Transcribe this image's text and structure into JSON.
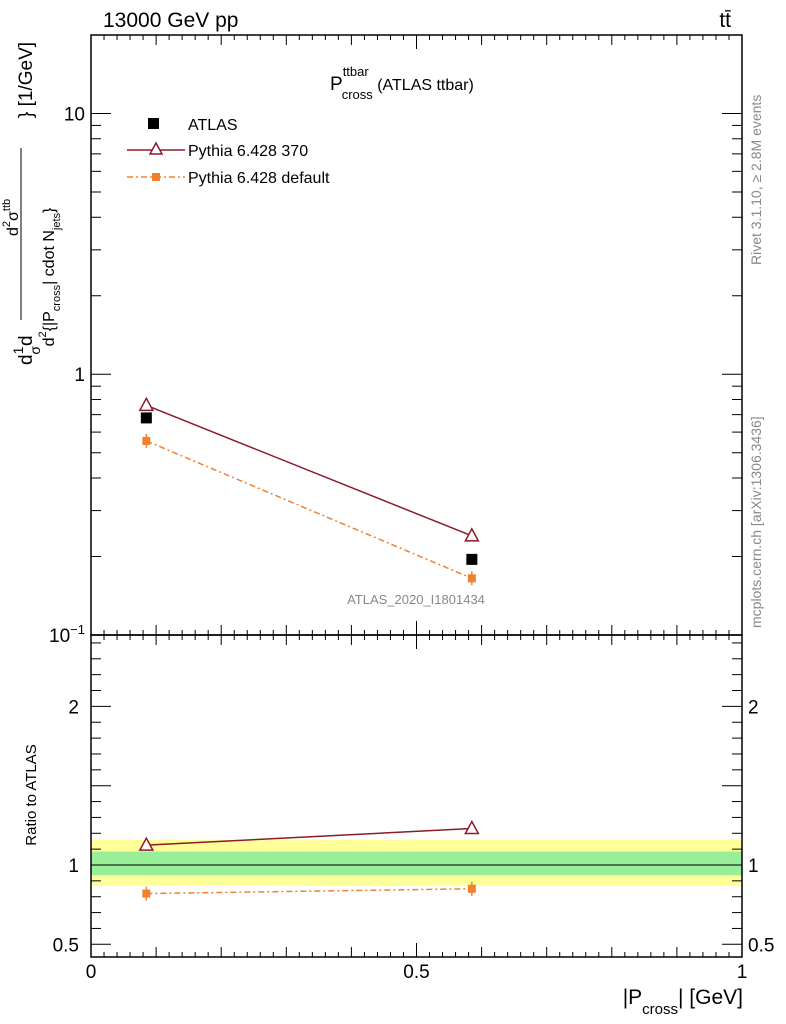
{
  "header": {
    "left": "13000 GeV pp",
    "right": "tt̄"
  },
  "side_labels": {
    "rivet": "Rivet 3.1.10, ≥ 2.8M events",
    "mcplots": "mcplots.cern.ch [arXiv:1306.3436]"
  },
  "chart_data": [
    {
      "type": "line",
      "panel": "main",
      "title_main": "P",
      "title_sup": "ttbar",
      "title_sub": "cross",
      "title_rest": " (ATLAS ttbar)",
      "watermark": "ATLAS_2020_I1801434",
      "yscale": "log",
      "xlim": [
        0,
        1
      ],
      "ylim": [
        0.1,
        20
      ],
      "yticks": [
        {
          "value": 0.1,
          "base": "10",
          "exp": "−1"
        },
        {
          "value": 1,
          "label": "1"
        },
        {
          "value": 10,
          "label": "10"
        }
      ],
      "ylabel": {
        "part1": "d",
        "frac1_num": "1",
        "frac1_den": "σ",
        "frac2_num": "d",
        "frac2_den": "d",
        "num_main": "d",
        "num_sup": "2",
        "num_sigma": "σ",
        "num_sigma_sup": "ttb",
        "den_main": "d",
        "den_sup": "2",
        "den_body": "{|P",
        "den_sub": "cross",
        "den_mid": "| cdot N",
        "den_sub2": "jets",
        "den_close": "}",
        "unit": "} [1/GeV]"
      },
      "legend_position": "top-left",
      "series": [
        {
          "name": "ATLAS",
          "color": "#000000",
          "marker": "square",
          "x": [
            0.085,
            0.585
          ],
          "y": [
            0.68,
            0.195
          ]
        },
        {
          "name": "Pythia 6.428 370",
          "color": "#8b1a2b",
          "marker": "open-triangle",
          "line": "solid",
          "x": [
            0.085,
            0.585
          ],
          "y": [
            0.76,
            0.24
          ]
        },
        {
          "name": "Pythia 6.428 default",
          "color": "#f08030",
          "marker": "small-square",
          "line": "dashdot",
          "x": [
            0.085,
            0.585
          ],
          "y": [
            0.555,
            0.165
          ]
        }
      ]
    },
    {
      "type": "line",
      "panel": "ratio",
      "ylabel": "Ratio to ATLAS",
      "xlabel_main": "|P",
      "xlabel_sub": "cross",
      "xlabel_unit": "| [GeV]",
      "xlim": [
        0,
        1
      ],
      "ylim": [
        0.42,
        2.45
      ],
      "xticks": [
        {
          "value": 0,
          "label": "0"
        },
        {
          "value": 0.5,
          "label": "0.5"
        },
        {
          "value": 1,
          "label": "1"
        }
      ],
      "yticks": [
        {
          "value": 0.5,
          "label": "0.5"
        },
        {
          "value": 1,
          "label": "1"
        },
        {
          "value": 2,
          "label": "2"
        }
      ],
      "bands": [
        {
          "name": "total uncertainty",
          "color": "#ffff99",
          "y": [
            0.87,
            1.16
          ]
        },
        {
          "name": "statistical uncertainty",
          "color": "#99ee99",
          "y": [
            0.935,
            1.085
          ]
        }
      ],
      "series": [
        {
          "name": "Pythia 6.428 370",
          "color": "#8b1a2b",
          "marker": "open-triangle",
          "line": "solid",
          "x": [
            0.085,
            0.585
          ],
          "y": [
            1.125,
            1.23
          ]
        },
        {
          "name": "Pythia 6.428 default",
          "color": "#f08030",
          "marker": "small-square",
          "line": "dashdot",
          "x": [
            0.085,
            0.585
          ],
          "y": [
            0.82,
            0.85
          ]
        }
      ]
    }
  ]
}
